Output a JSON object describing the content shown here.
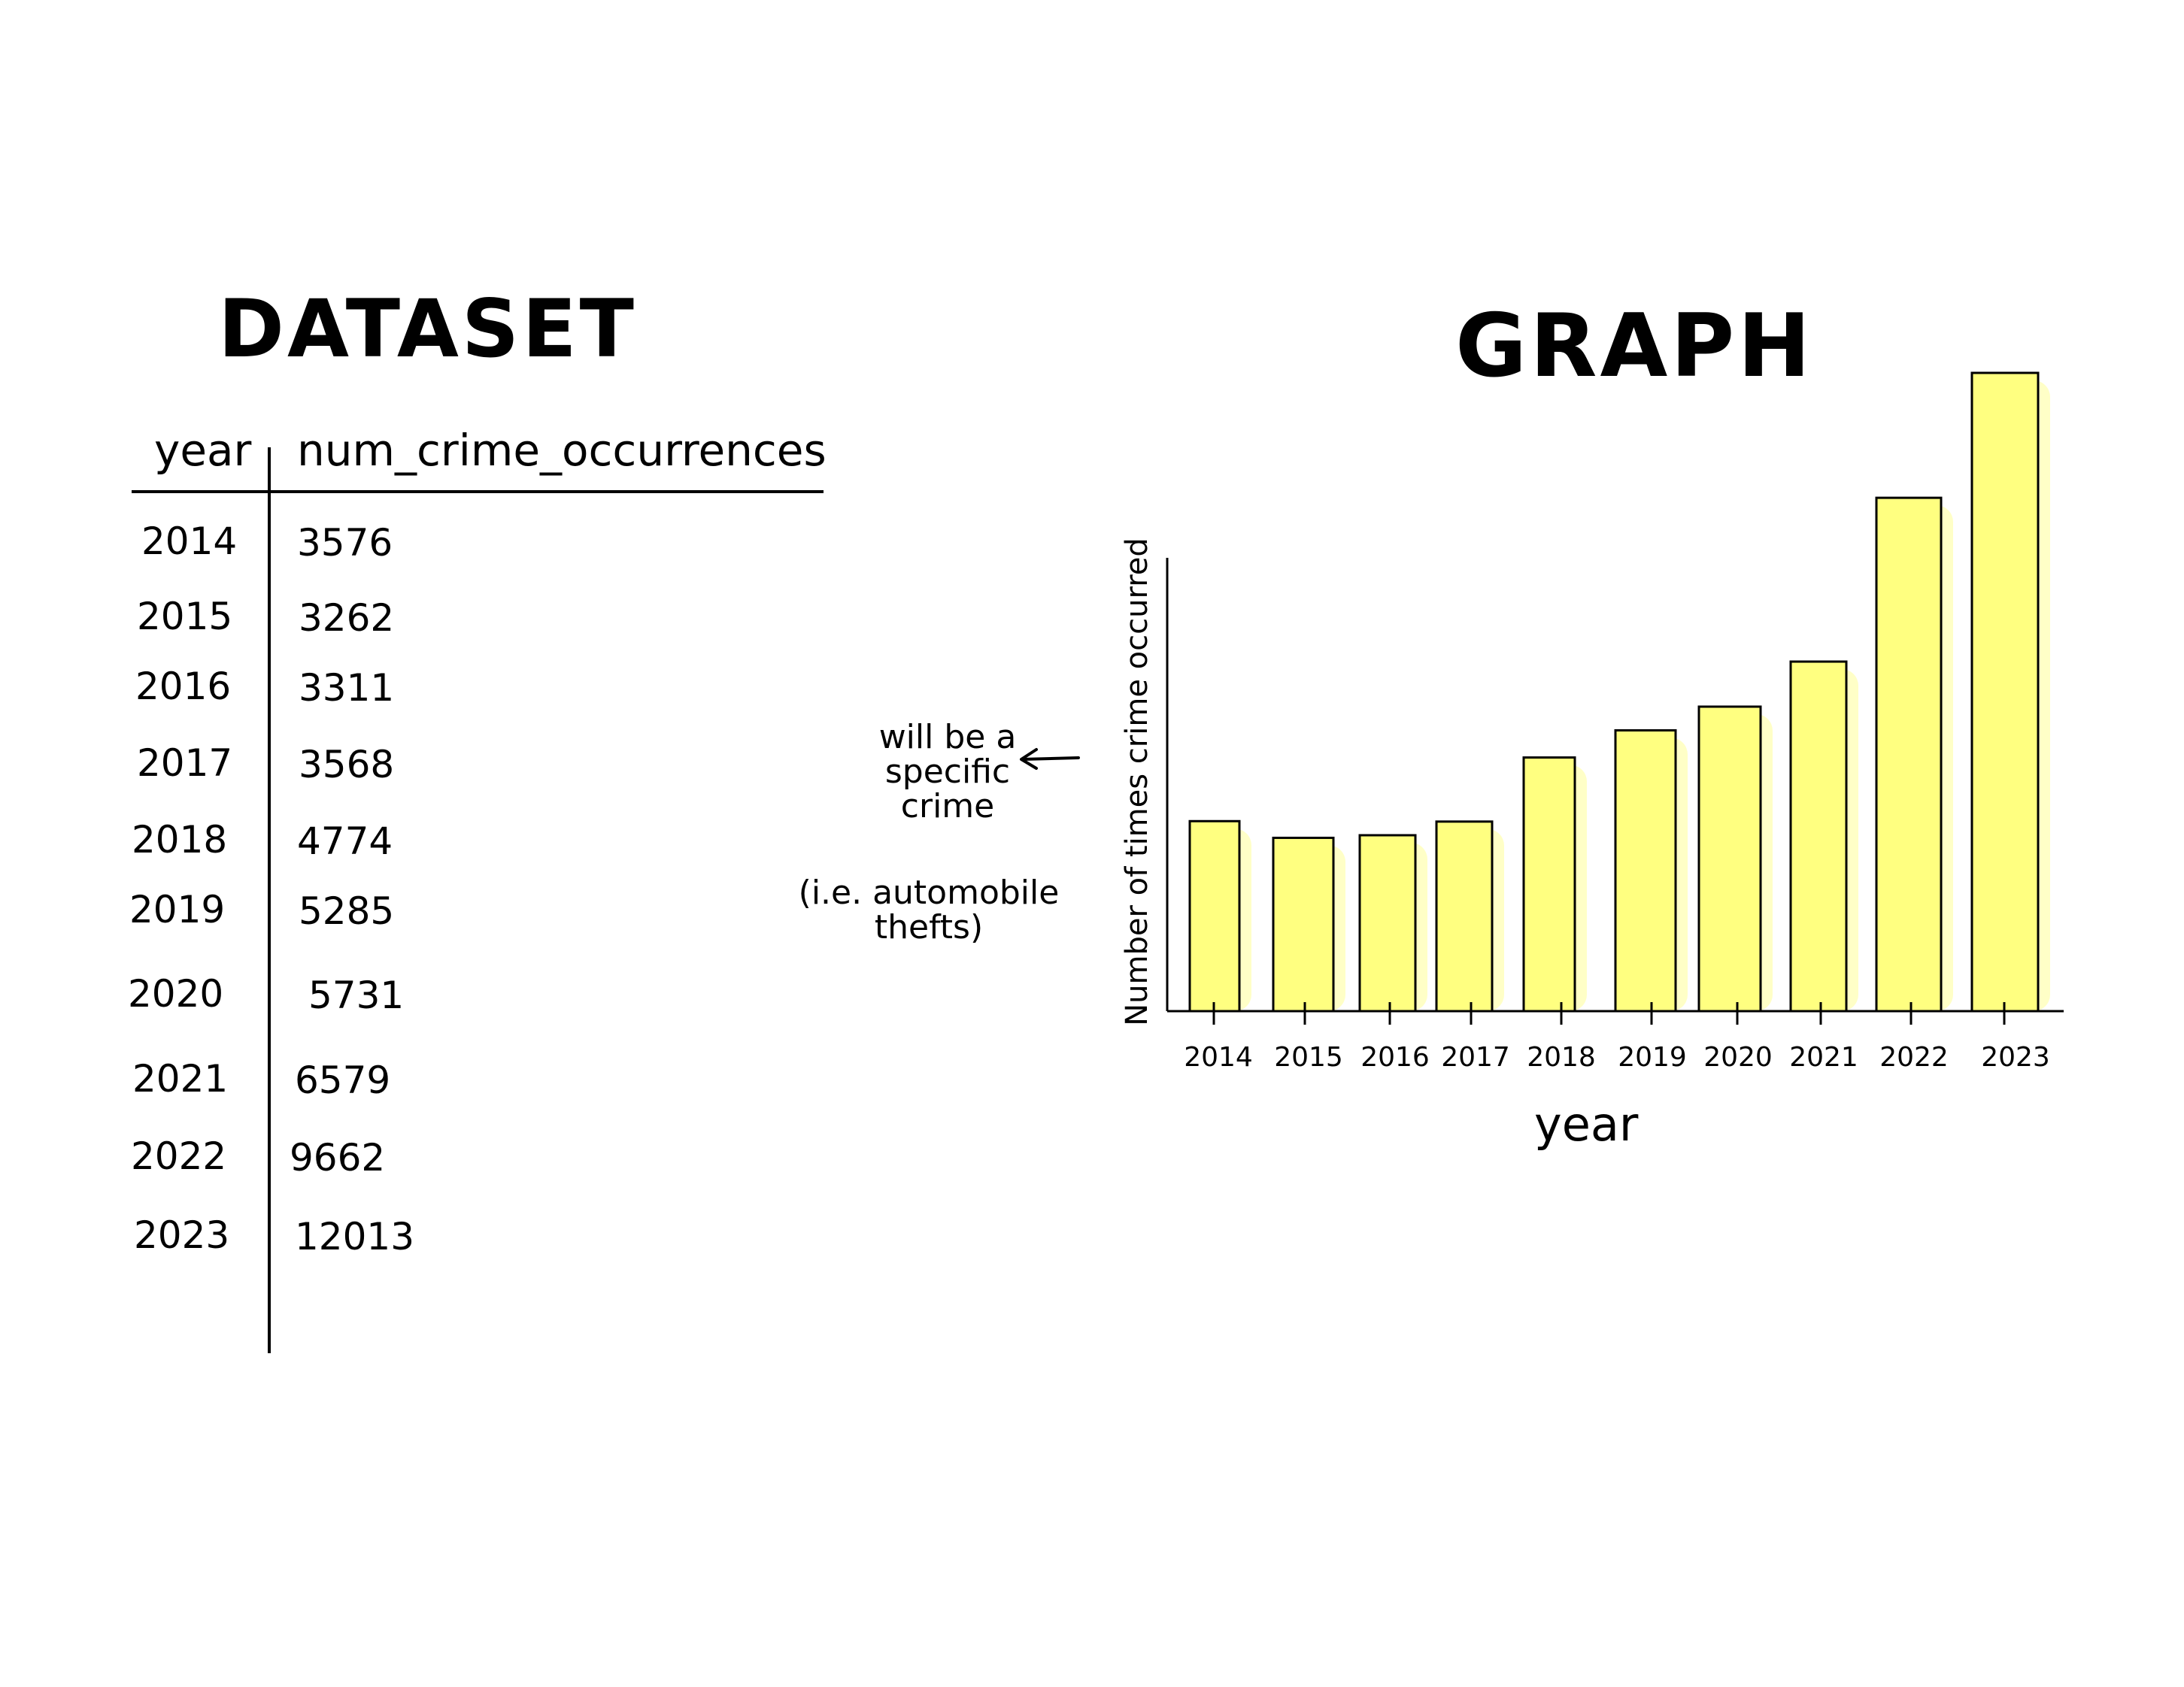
{
  "dataset": {
    "title": "DATASET",
    "headers": [
      "year",
      "num_crime_occurrences"
    ],
    "rows": [
      [
        "2014",
        "3576"
      ],
      [
        "2015",
        "3262"
      ],
      [
        "2016",
        "3311"
      ],
      [
        "2017",
        "3568"
      ],
      [
        "2018",
        "4774"
      ],
      [
        "2019",
        "5285"
      ],
      [
        "2020",
        "5731"
      ],
      [
        "2021",
        "6579"
      ],
      [
        "2022",
        "9662"
      ],
      [
        "2023",
        "12013"
      ]
    ]
  },
  "graph": {
    "title": "GRAPH",
    "annotation_1": "will be a specific crime",
    "annotation_2": "(i.e. automobile thefts)"
  },
  "colors": {
    "bar_fill": "#ffff80",
    "highlight": "#ffff99",
    "ink": "#000000"
  },
  "chart_data": {
    "type": "bar",
    "categories": [
      "2014",
      "2015",
      "2016",
      "2017",
      "2018",
      "2019",
      "2020",
      "2021",
      "2022",
      "2023"
    ],
    "values": [
      3576,
      3262,
      3311,
      3568,
      4774,
      5285,
      5731,
      6579,
      9662,
      12013
    ],
    "xlabel": "year",
    "ylabel": "Number of times crime occurred",
    "grid": false,
    "legend": "none"
  }
}
